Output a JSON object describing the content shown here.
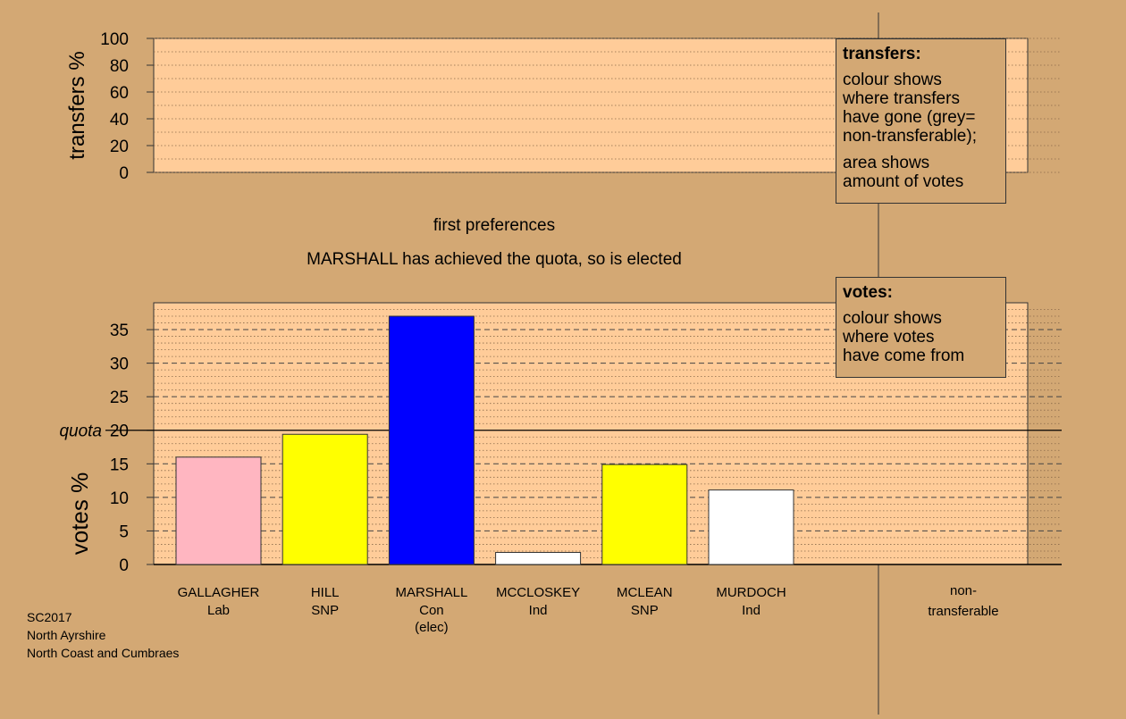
{
  "chart_data": [
    {
      "type": "bar",
      "panel": "transfers",
      "ylabel": "transfers %",
      "ylim": [
        0,
        100
      ],
      "yticks": [
        0,
        20,
        40,
        60,
        80,
        100
      ],
      "values": []
    },
    {
      "type": "bar",
      "panel": "votes",
      "ylabel": "votes %",
      "ylim": [
        0,
        39
      ],
      "yticks": [
        0,
        5,
        10,
        15,
        20,
        25,
        30,
        35
      ],
      "quota": 20,
      "quota_label": "quota",
      "categories": [
        {
          "name": "GALLAGHER",
          "party": "Lab",
          "note": ""
        },
        {
          "name": "HILL",
          "party": "SNP",
          "note": ""
        },
        {
          "name": "MARSHALL",
          "party": "Con",
          "note": "(elec)"
        },
        {
          "name": "MCCLOSKEY",
          "party": "Ind",
          "note": ""
        },
        {
          "name": "MCLEAN",
          "party": "SNP",
          "note": ""
        },
        {
          "name": "MURDOCH",
          "party": "Ind",
          "note": ""
        }
      ],
      "values": [
        16.0,
        19.4,
        37.0,
        1.8,
        14.9,
        11.1
      ],
      "colors": [
        "#ffb6c1",
        "#ffff00",
        "#0000ff",
        "#ffffff",
        "#ffff00",
        "#ffffff"
      ],
      "nontransferable_label": [
        "non-",
        "transferable"
      ]
    }
  ],
  "stage_title": "first preferences",
  "status_message": "MARSHALL has achieved the quota, so is elected",
  "legend_transfers": {
    "title": "transfers:",
    "lines1": [
      "colour shows",
      "where transfers",
      "have gone (grey=",
      "non-transferable);"
    ],
    "lines2": [
      "area shows",
      "amount of votes"
    ]
  },
  "legend_votes": {
    "title": "votes:",
    "lines": [
      "colour shows",
      "where votes",
      "have come from"
    ]
  },
  "footer": {
    "line1": "SC2017",
    "line2": "North Ayrshire",
    "line3": "North Coast and Cumbraes"
  },
  "colors": {
    "background": "#d3a874",
    "panel": "#ffcc99"
  }
}
